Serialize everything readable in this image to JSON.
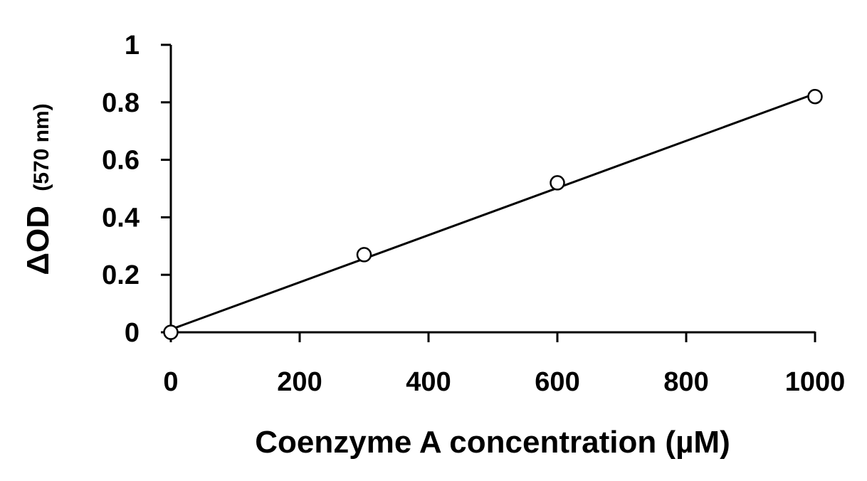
{
  "chart_data": {
    "type": "scatter",
    "title": "",
    "xlabel": "Coenzyme A concentration (µM)",
    "ylabel_main": "ΔOD",
    "ylabel_unit": "(570 nm)",
    "xlim": [
      0,
      1000
    ],
    "ylim": [
      0,
      1
    ],
    "x_ticks": [
      0,
      200,
      400,
      600,
      800,
      1000
    ],
    "y_ticks": [
      0,
      0.2,
      0.4,
      0.6,
      0.8,
      1
    ],
    "x_tick_labels": [
      "0",
      "200",
      "400",
      "600",
      "800",
      "1000"
    ],
    "y_tick_labels": [
      "0",
      "0.2",
      "0.4",
      "0.6",
      "0.8",
      "1"
    ],
    "grid": false,
    "legend": "none",
    "series": [
      {
        "x": [
          0,
          300,
          600,
          1000
        ],
        "y": [
          0,
          0.27,
          0.52,
          0.82
        ],
        "marker": "open-circle",
        "color": "#000000"
      }
    ],
    "trendline": {
      "type": "linear",
      "x": [
        0,
        1000
      ],
      "y": [
        0.01,
        0.83
      ],
      "color": "#000000"
    }
  }
}
